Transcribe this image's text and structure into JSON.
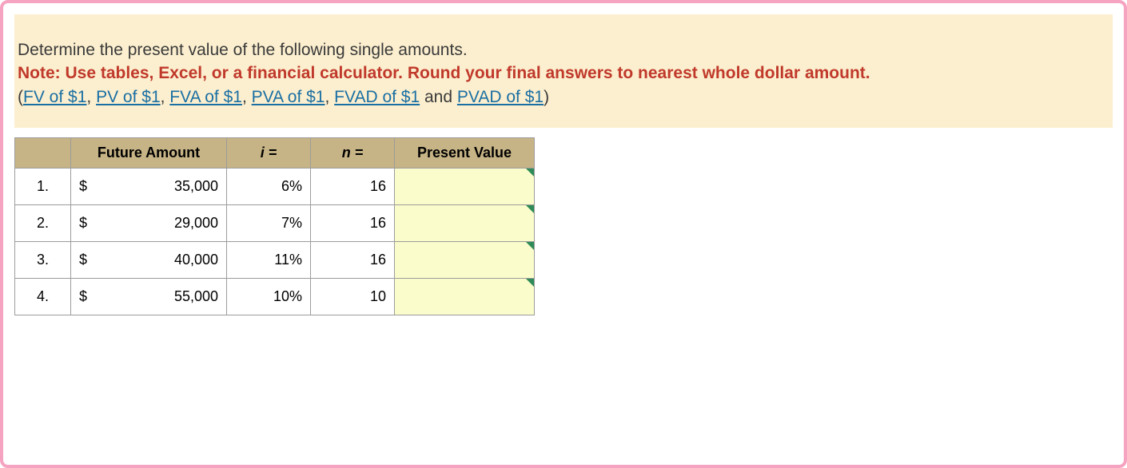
{
  "frame": {
    "border_color": "#f5a3c0",
    "background": "#ffffff"
  },
  "instruction": {
    "background": "#fcefcf",
    "line1": "Determine the present value of the following single amounts.",
    "note_color": "#c0392b",
    "note_text": "Note: Use tables, Excel, or a financial calculator. Round your final answers to nearest whole dollar amount.",
    "link_color": "#1a6fa3",
    "paren_open": "(",
    "paren_close": ")",
    "and_text": " and ",
    "sep": ", ",
    "links": {
      "fv": "FV of $1",
      "pv": "PV of $1",
      "fva": "FVA of $1",
      "pva": "PVA of $1",
      "fvad": "FVAD of $1",
      "pvad": "PVAD of $1"
    }
  },
  "table": {
    "header_bg": "#c7b486",
    "cell_border": "#9c9c9c",
    "input_bg": "#fbfccb",
    "triangle_color": "#2e8b57",
    "columns": {
      "num": "",
      "future_amount": "Future Amount",
      "i": "i =",
      "n": "n =",
      "present_value": "Present Value"
    },
    "currency_symbol": "$",
    "rows": [
      {
        "num": "1.",
        "future_amount": "35,000",
        "i": "6%",
        "n": "16",
        "pv": ""
      },
      {
        "num": "2.",
        "future_amount": "29,000",
        "i": "7%",
        "n": "16",
        "pv": ""
      },
      {
        "num": "3.",
        "future_amount": "40,000",
        "i": "11%",
        "n": "16",
        "pv": ""
      },
      {
        "num": "4.",
        "future_amount": "55,000",
        "i": "10%",
        "n": "10",
        "pv": ""
      }
    ]
  }
}
